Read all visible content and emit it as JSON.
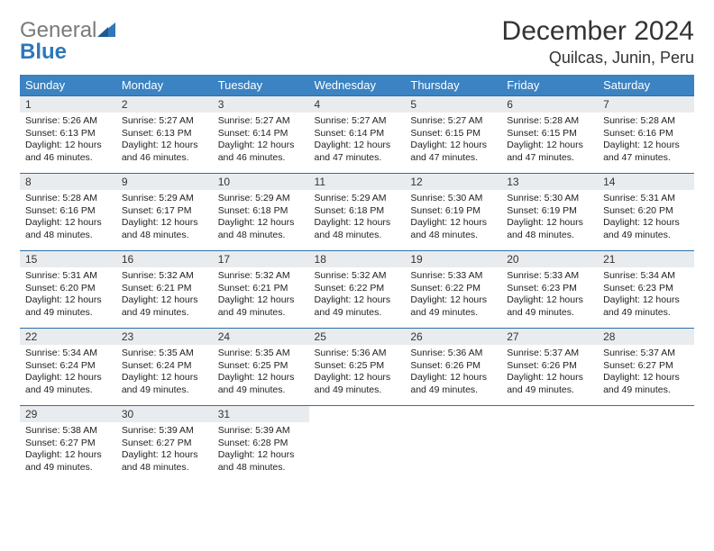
{
  "logo": {
    "general": "General",
    "blue": "Blue"
  },
  "title": "December 2024",
  "location": "Quilcas, Junin, Peru",
  "colors": {
    "header_bg": "#3b83c2",
    "header_text": "#ffffff",
    "daynum_bg": "#e9ecef",
    "row_border": "#2f6fa6",
    "logo_gray": "#7a7a7a",
    "logo_blue": "#2f77b8"
  },
  "weekdays": [
    "Sunday",
    "Monday",
    "Tuesday",
    "Wednesday",
    "Thursday",
    "Friday",
    "Saturday"
  ],
  "days": [
    {
      "n": "1",
      "sr": "5:26 AM",
      "ss": "6:13 PM",
      "dl": "12 hours and 46 minutes."
    },
    {
      "n": "2",
      "sr": "5:27 AM",
      "ss": "6:13 PM",
      "dl": "12 hours and 46 minutes."
    },
    {
      "n": "3",
      "sr": "5:27 AM",
      "ss": "6:14 PM",
      "dl": "12 hours and 46 minutes."
    },
    {
      "n": "4",
      "sr": "5:27 AM",
      "ss": "6:14 PM",
      "dl": "12 hours and 47 minutes."
    },
    {
      "n": "5",
      "sr": "5:27 AM",
      "ss": "6:15 PM",
      "dl": "12 hours and 47 minutes."
    },
    {
      "n": "6",
      "sr": "5:28 AM",
      "ss": "6:15 PM",
      "dl": "12 hours and 47 minutes."
    },
    {
      "n": "7",
      "sr": "5:28 AM",
      "ss": "6:16 PM",
      "dl": "12 hours and 47 minutes."
    },
    {
      "n": "8",
      "sr": "5:28 AM",
      "ss": "6:16 PM",
      "dl": "12 hours and 48 minutes."
    },
    {
      "n": "9",
      "sr": "5:29 AM",
      "ss": "6:17 PM",
      "dl": "12 hours and 48 minutes."
    },
    {
      "n": "10",
      "sr": "5:29 AM",
      "ss": "6:18 PM",
      "dl": "12 hours and 48 minutes."
    },
    {
      "n": "11",
      "sr": "5:29 AM",
      "ss": "6:18 PM",
      "dl": "12 hours and 48 minutes."
    },
    {
      "n": "12",
      "sr": "5:30 AM",
      "ss": "6:19 PM",
      "dl": "12 hours and 48 minutes."
    },
    {
      "n": "13",
      "sr": "5:30 AM",
      "ss": "6:19 PM",
      "dl": "12 hours and 48 minutes."
    },
    {
      "n": "14",
      "sr": "5:31 AM",
      "ss": "6:20 PM",
      "dl": "12 hours and 49 minutes."
    },
    {
      "n": "15",
      "sr": "5:31 AM",
      "ss": "6:20 PM",
      "dl": "12 hours and 49 minutes."
    },
    {
      "n": "16",
      "sr": "5:32 AM",
      "ss": "6:21 PM",
      "dl": "12 hours and 49 minutes."
    },
    {
      "n": "17",
      "sr": "5:32 AM",
      "ss": "6:21 PM",
      "dl": "12 hours and 49 minutes."
    },
    {
      "n": "18",
      "sr": "5:32 AM",
      "ss": "6:22 PM",
      "dl": "12 hours and 49 minutes."
    },
    {
      "n": "19",
      "sr": "5:33 AM",
      "ss": "6:22 PM",
      "dl": "12 hours and 49 minutes."
    },
    {
      "n": "20",
      "sr": "5:33 AM",
      "ss": "6:23 PM",
      "dl": "12 hours and 49 minutes."
    },
    {
      "n": "21",
      "sr": "5:34 AM",
      "ss": "6:23 PM",
      "dl": "12 hours and 49 minutes."
    },
    {
      "n": "22",
      "sr": "5:34 AM",
      "ss": "6:24 PM",
      "dl": "12 hours and 49 minutes."
    },
    {
      "n": "23",
      "sr": "5:35 AM",
      "ss": "6:24 PM",
      "dl": "12 hours and 49 minutes."
    },
    {
      "n": "24",
      "sr": "5:35 AM",
      "ss": "6:25 PM",
      "dl": "12 hours and 49 minutes."
    },
    {
      "n": "25",
      "sr": "5:36 AM",
      "ss": "6:25 PM",
      "dl": "12 hours and 49 minutes."
    },
    {
      "n": "26",
      "sr": "5:36 AM",
      "ss": "6:26 PM",
      "dl": "12 hours and 49 minutes."
    },
    {
      "n": "27",
      "sr": "5:37 AM",
      "ss": "6:26 PM",
      "dl": "12 hours and 49 minutes."
    },
    {
      "n": "28",
      "sr": "5:37 AM",
      "ss": "6:27 PM",
      "dl": "12 hours and 49 minutes."
    },
    {
      "n": "29",
      "sr": "5:38 AM",
      "ss": "6:27 PM",
      "dl": "12 hours and 49 minutes."
    },
    {
      "n": "30",
      "sr": "5:39 AM",
      "ss": "6:27 PM",
      "dl": "12 hours and 48 minutes."
    },
    {
      "n": "31",
      "sr": "5:39 AM",
      "ss": "6:28 PM",
      "dl": "12 hours and 48 minutes."
    }
  ],
  "labels": {
    "sunrise": "Sunrise: ",
    "sunset": "Sunset: ",
    "daylight": "Daylight: "
  },
  "layout": {
    "start_offset": 0,
    "total_cells": 35
  }
}
